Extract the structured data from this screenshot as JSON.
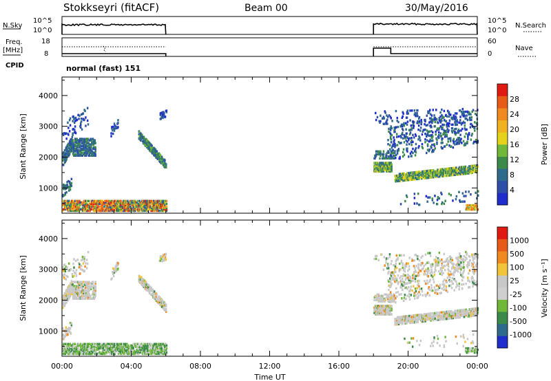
{
  "header": {
    "station": "Stokkseyri (fitACF)",
    "beam": "Beam 00",
    "date": "30/May/2016"
  },
  "left_labels": {
    "nsky": "N.Sky",
    "freq": "Freq.",
    "mhz": "[MHz]",
    "cpid": "CPID"
  },
  "right_labels": {
    "nsearch": "N.Search",
    "nave": "Nave"
  },
  "cpid_text": "normal (fast) 151",
  "colors": {
    "power": [
      "#1f2dcc",
      "#2d4fa8",
      "#2f6a8c",
      "#3c8a4a",
      "#6fb83a",
      "#e6d21a",
      "#f0b21e",
      "#f08a1e",
      "#e85a17",
      "#e01a12"
    ],
    "velocity": [
      "#e01a12",
      "#e85a17",
      "#f08a1e",
      "#f2c43a",
      "#c8c8c8",
      "#cfcfcf",
      "#6fb83a",
      "#3c8a4a",
      "#2f6a8c",
      "#1f2dcc"
    ]
  },
  "chart_data": [
    {
      "type": "line",
      "name": "noise-panel",
      "left_axis": {
        "label": "N.Sky",
        "ticks": [
          "10^5",
          "10^0"
        ]
      },
      "right_axis": {
        "label": "N.Search",
        "ticks": [
          "10^5",
          "10^0"
        ]
      },
      "segments": [
        {
          "x_hours": [
            0.0,
            6.0
          ],
          "level": "high"
        },
        {
          "x_hours": [
            18.0,
            24.0
          ],
          "level": "high"
        }
      ]
    },
    {
      "type": "line",
      "name": "freq-nave-panel",
      "left_axis": {
        "label": "Freq. [MHz]",
        "ticks": [
          "18",
          "8"
        ]
      },
      "right_axis": {
        "label": "Nave",
        "ticks": [
          "60",
          "0"
        ]
      },
      "gaps_hours": [
        [
          6.0,
          18.0
        ]
      ]
    },
    {
      "type": "heatmap",
      "name": "power-panel",
      "ylabel": "Slant Range [km]",
      "yticks": [
        1000,
        2000,
        3000,
        4000
      ],
      "colorbar_label": "Power [dB]",
      "colorbar_ticks": [
        4,
        8,
        12,
        16,
        20,
        24,
        28
      ],
      "data_gap_hours": [
        6.0,
        18.0
      ]
    },
    {
      "type": "heatmap",
      "name": "velocity-panel",
      "ylabel": "Slant Range [km]",
      "yticks": [
        1000,
        2000,
        3000,
        4000
      ],
      "colorbar_label": "Velocity [m s⁻¹]",
      "colorbar_ticks": [
        "1000",
        "500",
        "100",
        "25",
        "-25",
        "-100",
        "-500",
        "-1000"
      ],
      "data_gap_hours": [
        6.0,
        18.0
      ]
    }
  ],
  "x_axis": {
    "label": "Time UT",
    "ticks": [
      "00:00",
      "04:00",
      "08:00",
      "12:00",
      "16:00",
      "20:00",
      "00:00"
    ]
  }
}
